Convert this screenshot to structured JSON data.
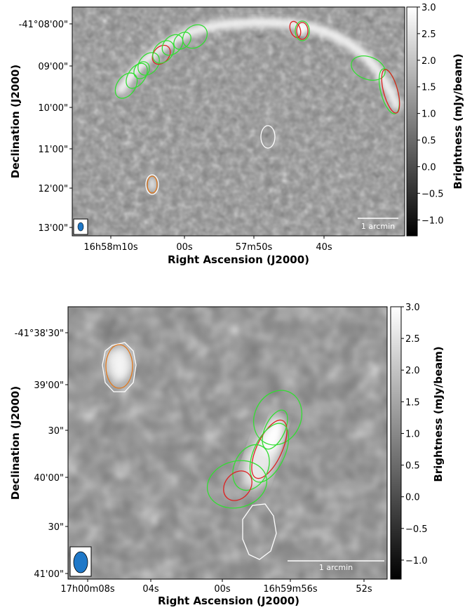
{
  "colors": {
    "source_green": "#33dd33",
    "source_red": "#dd2222",
    "source_orange": "#e07a20",
    "source_white": "#ffffff",
    "beam_fill": "#1f78c8"
  },
  "chart_data": [
    {
      "type": "heatmap",
      "title": "",
      "xlabel": "Right Ascension (J2000)",
      "ylabel": "Declination (J2000)",
      "colorbar_label": "Brightness (mJy/beam)",
      "colorbar_ticks": [
        "3.0",
        "2.5",
        "2.0",
        "1.5",
        "1.0",
        "0.5",
        "0.0",
        "−0.5",
        "−1.0"
      ],
      "colorbar_values": [
        3.0,
        2.5,
        2.0,
        1.5,
        1.0,
        0.5,
        0.0,
        -0.5,
        -1.0
      ],
      "clim": [
        -1.3,
        3.0
      ],
      "colormap": "grayscale",
      "x_tick_labels": [
        "16h58m10s",
        "00s",
        "57m50s",
        "40s"
      ],
      "y_tick_labels": [
        "-41°08'00\"",
        "09'00\"",
        "10'00\"",
        "11'00\"",
        "12'00\"",
        "13'00\""
      ],
      "scale_bar_label": "1 arcmin",
      "legend": "none",
      "grid": false
    },
    {
      "type": "heatmap",
      "title": "",
      "xlabel": "Right Ascension (J2000)",
      "ylabel": "Declination (J2000)",
      "colorbar_label": "Brightness (mJy/beam)",
      "colorbar_ticks": [
        "3.0",
        "2.5",
        "2.0",
        "1.5",
        "1.0",
        "0.5",
        "0.0",
        "−0.5",
        "−1.0"
      ],
      "colorbar_values": [
        3.0,
        2.5,
        2.0,
        1.5,
        1.0,
        0.5,
        0.0,
        -0.5,
        -1.0
      ],
      "clim": [
        -1.3,
        3.0
      ],
      "colormap": "grayscale",
      "x_tick_labels": [
        "17h00m08s",
        "04s",
        "00s",
        "16h59m56s",
        "52s"
      ],
      "y_tick_labels": [
        "-41°38'30\"",
        "39'00\"",
        "30\"",
        "40'00\"",
        "30\"",
        "41'00\""
      ],
      "scale_bar_label": "1 arcmin",
      "legend": "none",
      "grid": false
    }
  ]
}
